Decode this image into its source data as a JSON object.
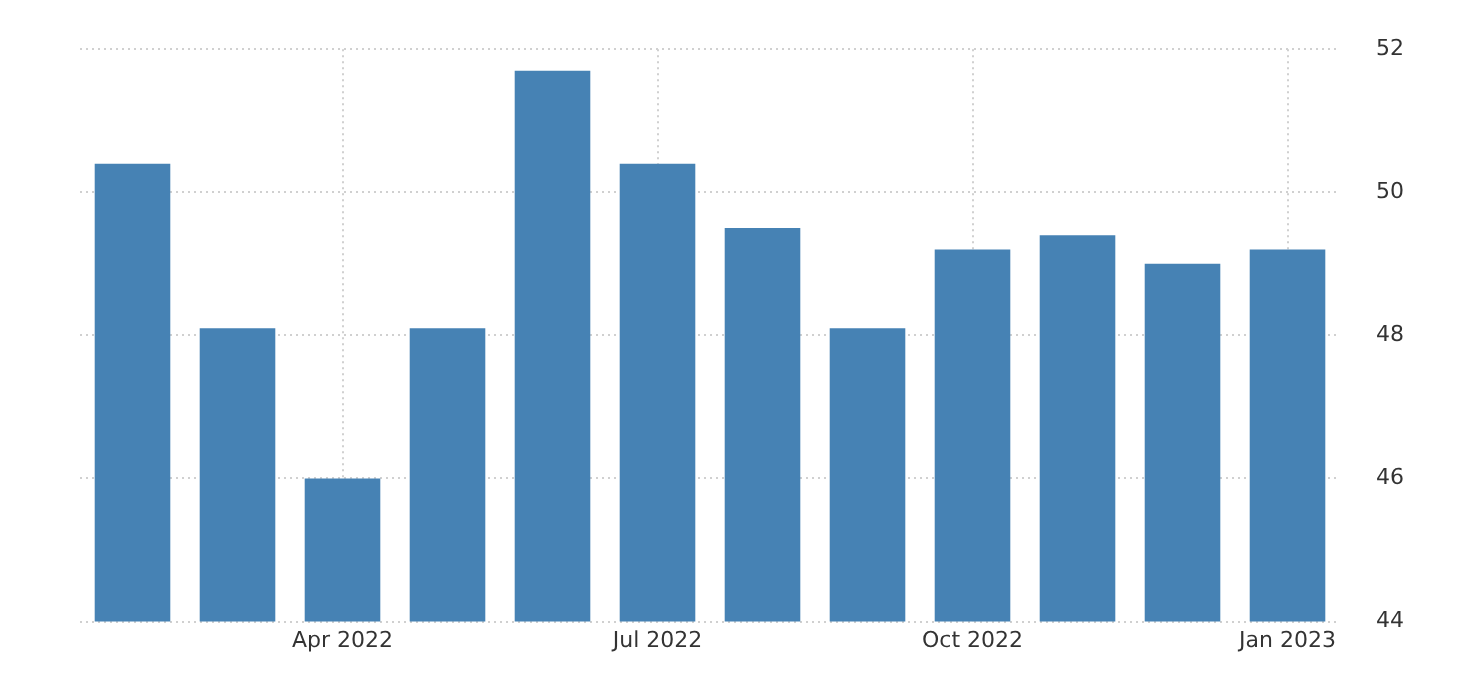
{
  "chart_data": {
    "type": "bar",
    "categories": [
      null,
      null,
      "Apr 2022",
      null,
      null,
      "Jul 2022",
      null,
      null,
      "Oct 2022",
      null,
      null,
      "Jan 2023"
    ],
    "values": [
      50.4,
      48.1,
      46.0,
      48.1,
      51.7,
      50.4,
      49.5,
      48.1,
      49.2,
      49.4,
      49.0,
      49.2
    ],
    "color": "#4682b4",
    "ylim": [
      44,
      52
    ],
    "yticks": [
      44,
      46,
      48,
      50,
      52
    ],
    "grid": true,
    "legend": false
  }
}
